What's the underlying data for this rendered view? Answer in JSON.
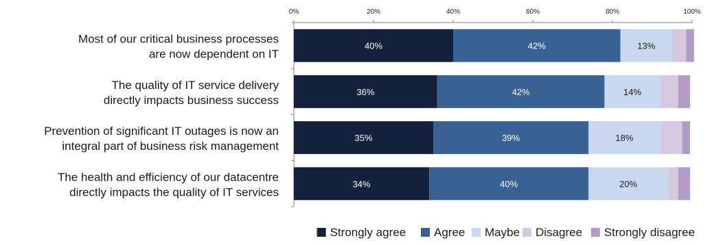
{
  "chart_data": {
    "type": "bar",
    "orientation": "horizontal",
    "stacked": true,
    "percent_stacked": true,
    "categories": [
      [
        "Most of our critical business processes",
        "are now dependent on IT"
      ],
      [
        "The quality of IT service delivery",
        "directly impacts business success"
      ],
      [
        "Prevention of significant IT outages is now an",
        "integral part of business risk management"
      ],
      [
        "The health and efficiency of our datacentre",
        "directly impacts the quality of IT services"
      ]
    ],
    "series": [
      {
        "name": "Strongly agree",
        "color": "#14213d",
        "label_color": "#ffffff",
        "values": [
          40,
          36,
          35,
          34
        ],
        "labels": [
          "40%",
          "36%",
          "35%",
          "34%"
        ]
      },
      {
        "name": "Agree",
        "color": "#3a6194",
        "label_color": "#ffffff",
        "values": [
          42,
          42,
          39,
          40
        ],
        "labels": [
          "42%",
          "42%",
          "39%",
          "40%"
        ]
      },
      {
        "name": "Maybe",
        "color": "#c9d8ee",
        "label_color": "#1a1a1a",
        "values": [
          13,
          14,
          18,
          20
        ],
        "labels": [
          "13%",
          "14%",
          "18%",
          "20%"
        ]
      },
      {
        "name": "Disagree",
        "color": "#d5c8df",
        "label_color": "#1a1a1a",
        "values": [
          3.5,
          4.5,
          5.5,
          2.5
        ],
        "labels": [
          "",
          "",
          "",
          ""
        ]
      },
      {
        "name": "Strongly disagree",
        "color": "#b09cc6",
        "label_color": "#1a1a1a",
        "values": [
          2,
          3,
          2,
          3
        ],
        "labels": [
          "",
          "",
          "",
          ""
        ]
      }
    ],
    "x_ticks": [
      "0%",
      "20%",
      "40%",
      "60%",
      "80%",
      "100%"
    ],
    "xlim": [
      0,
      100
    ],
    "xaxis_position": "top",
    "grid": false,
    "legend_position": "bottom"
  }
}
